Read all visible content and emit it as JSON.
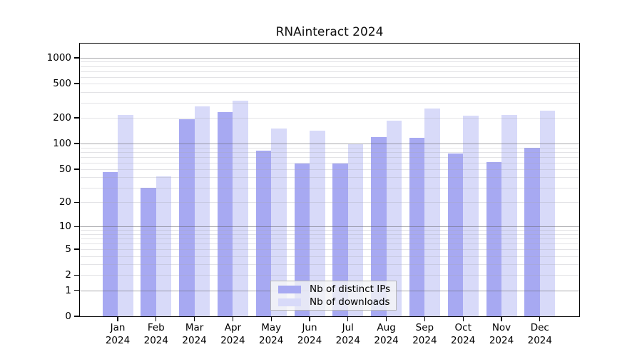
{
  "chart_data": {
    "type": "bar",
    "title": "RNAinteract 2024",
    "x_categories": [
      "Jan",
      "Feb",
      "Mar",
      "Apr",
      "May",
      "Jun",
      "Jul",
      "Aug",
      "Sep",
      "Oct",
      "Nov",
      "Dec"
    ],
    "x_sub_label": "2024",
    "y_ticks": [
      0,
      1,
      2,
      5,
      10,
      20,
      50,
      100,
      200,
      500,
      1000
    ],
    "y_scale": "symlog: y position proportional to log10(value+1)",
    "ylim": [
      0,
      1400
    ],
    "grid": true,
    "legend_position": "inside-bottom-center",
    "series": [
      {
        "name": "Nb of distinct IPs",
        "color": "#a7a9f2",
        "values": [
          46,
          30,
          191,
          233,
          83,
          58,
          58,
          119,
          117,
          76,
          61,
          90
        ]
      },
      {
        "name": "Nb of downloads",
        "color": "#d8daf9",
        "values": [
          216,
          41,
          271,
          315,
          151,
          142,
          98,
          184,
          256,
          210,
          218,
          241
        ]
      }
    ],
    "colors": {
      "background": "#ffffff",
      "axis": "#000000",
      "text": "#000000",
      "major_grid": "#9e9e9e",
      "minor_grid": "#e6e6e9"
    }
  }
}
